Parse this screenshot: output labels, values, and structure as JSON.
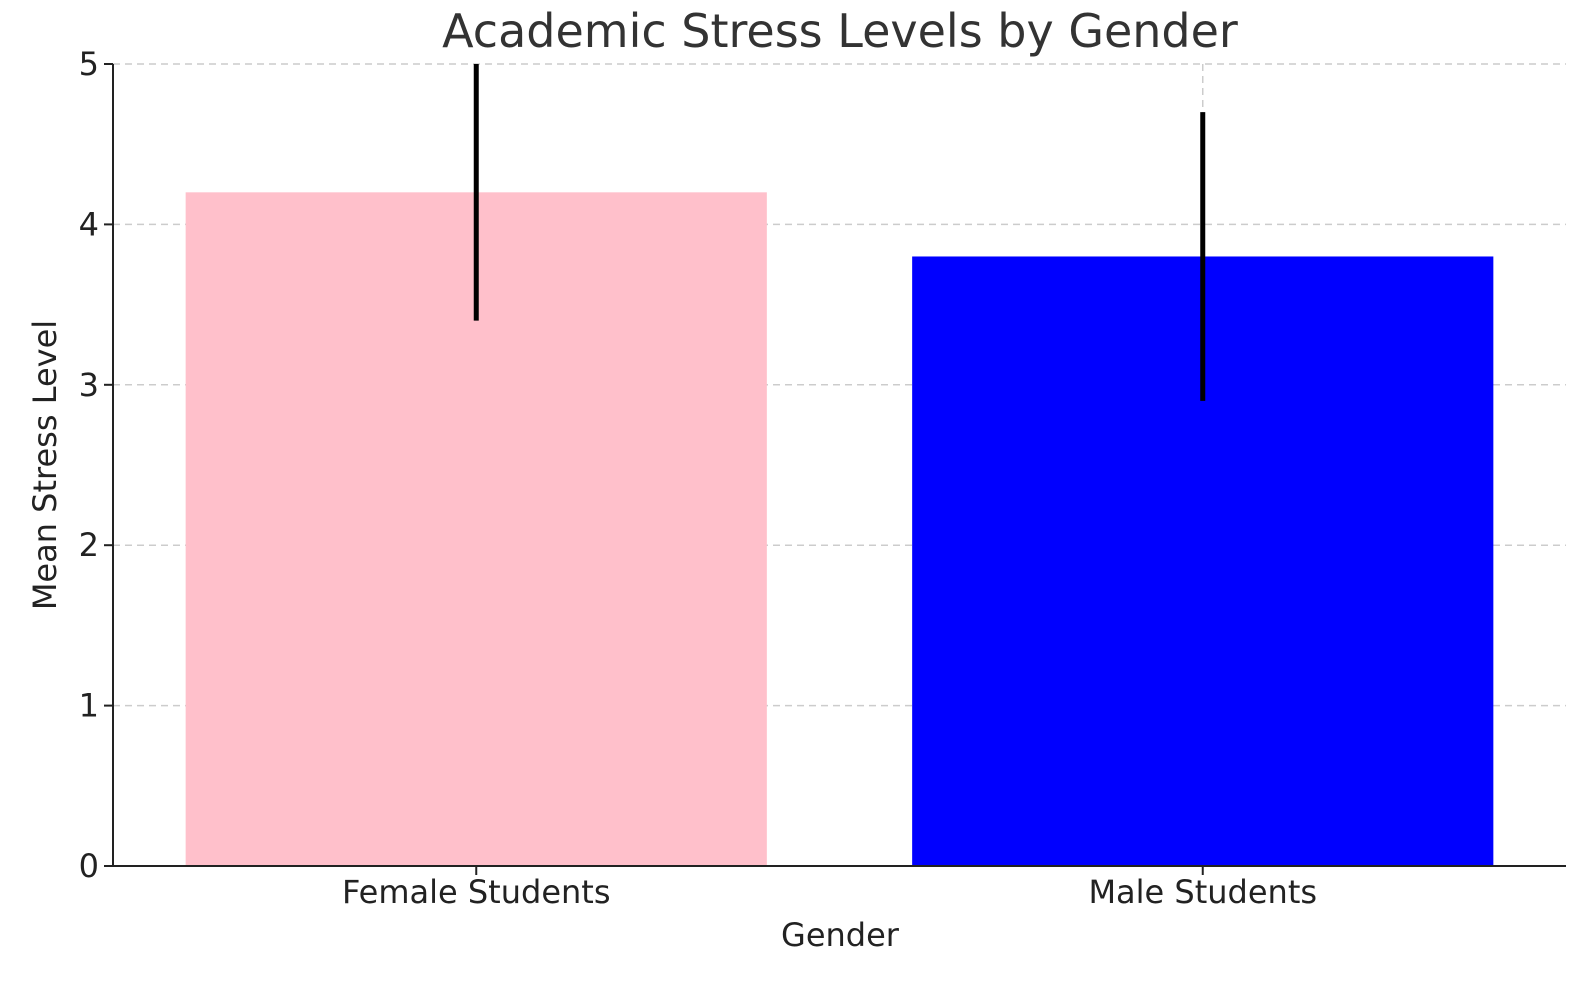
{
  "chart_data": {
    "type": "bar",
    "title": "Academic Stress Levels by Gender",
    "xlabel": "Gender",
    "ylabel": "Mean Stress Level",
    "categories": [
      "Female Students",
      "Male Students"
    ],
    "values": [
      4.2,
      3.8
    ],
    "error": [
      0.8,
      0.9
    ],
    "colors": [
      "#ffc0cb",
      "#0000ff"
    ],
    "ylim": [
      0,
      5
    ],
    "yticks": [
      "0",
      "1",
      "2",
      "3",
      "4",
      "5"
    ],
    "grid": true
  }
}
